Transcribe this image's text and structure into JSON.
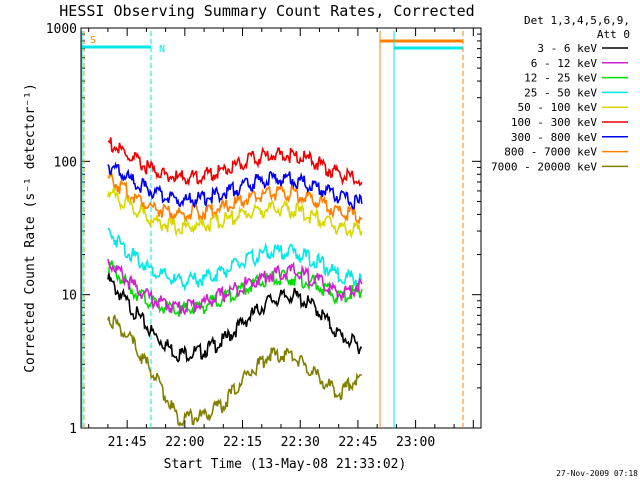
{
  "chart_data": {
    "type": "line",
    "title": "HESSI Observing Summary Count Rates, Corrected",
    "xlabel": "Start Time (13-May-08 21:33:02)",
    "ylabel": "Corrected Count Rate (s⁻¹ detector⁻¹)",
    "y_scale": "log",
    "ylim": [
      1,
      1000
    ],
    "xlim": [
      "21:33",
      "23:17"
    ],
    "x_tick_labels": [
      "21:45",
      "22:00",
      "22:15",
      "22:30",
      "22:45",
      "23:00"
    ],
    "y_tick_labels": [
      "1",
      "10",
      "100",
      "1000"
    ],
    "legend_header": [
      "Det 1,3,4,5,6,9,",
      "Att 0"
    ],
    "legend_placement": "right",
    "footer": "27-Nov-2009 07:18",
    "annotations": [
      "S",
      "N"
    ],
    "x": [
      "21:40",
      "21:46",
      "21:52",
      "21:58",
      "22:04",
      "22:10",
      "22:16",
      "22:22",
      "22:28",
      "22:34",
      "22:40",
      "22:46"
    ],
    "series": [
      {
        "name": "3 - 6 keV",
        "color": "#000000",
        "values": [
          13,
          8,
          5,
          3.6,
          3.7,
          4.5,
          6.5,
          9,
          10,
          8,
          5,
          4
        ]
      },
      {
        "name": "6 - 12 keV",
        "color": "#d020d0",
        "values": [
          18,
          12,
          9,
          8,
          8.5,
          10,
          12,
          14,
          15,
          13,
          10,
          12
        ]
      },
      {
        "name": "12 - 25 keV",
        "color": "#00dd00",
        "values": [
          17,
          11,
          8.5,
          7.5,
          8,
          9.5,
          11.5,
          13,
          13.5,
          12,
          9.5,
          11
        ]
      },
      {
        "name": "25 - 50 keV",
        "color": "#00e8e8",
        "values": [
          30,
          20,
          15,
          12.5,
          13,
          15,
          18,
          21,
          21,
          18,
          14,
          13
        ]
      },
      {
        "name": "50 - 100 keV",
        "color": "#d8d800",
        "values": [
          60,
          45,
          36,
          32,
          33,
          36,
          41,
          44,
          43,
          38,
          32,
          30
        ]
      },
      {
        "name": "100 - 300 keV",
        "color": "#ee0000",
        "values": [
          140,
          105,
          85,
          75,
          77,
          86,
          100,
          112,
          112,
          98,
          80,
          70
        ]
      },
      {
        "name": "300 - 800 keV",
        "color": "#0000ee",
        "values": [
          95,
          72,
          58,
          51,
          52,
          58,
          67,
          74,
          74,
          65,
          54,
          48
        ]
      },
      {
        "name": "800 - 7000 keV",
        "color": "#ff8000",
        "values": [
          75,
          56,
          45,
          40,
          41,
          45,
          52,
          58,
          58,
          51,
          42,
          38
        ]
      },
      {
        "name": "7000 - 20000 keV",
        "color": "#808000",
        "values": [
          7,
          4.5,
          2.5,
          1.2,
          1.2,
          1.5,
          2.5,
          3.5,
          3.5,
          2.5,
          1.8,
          2.5
        ]
      }
    ]
  }
}
